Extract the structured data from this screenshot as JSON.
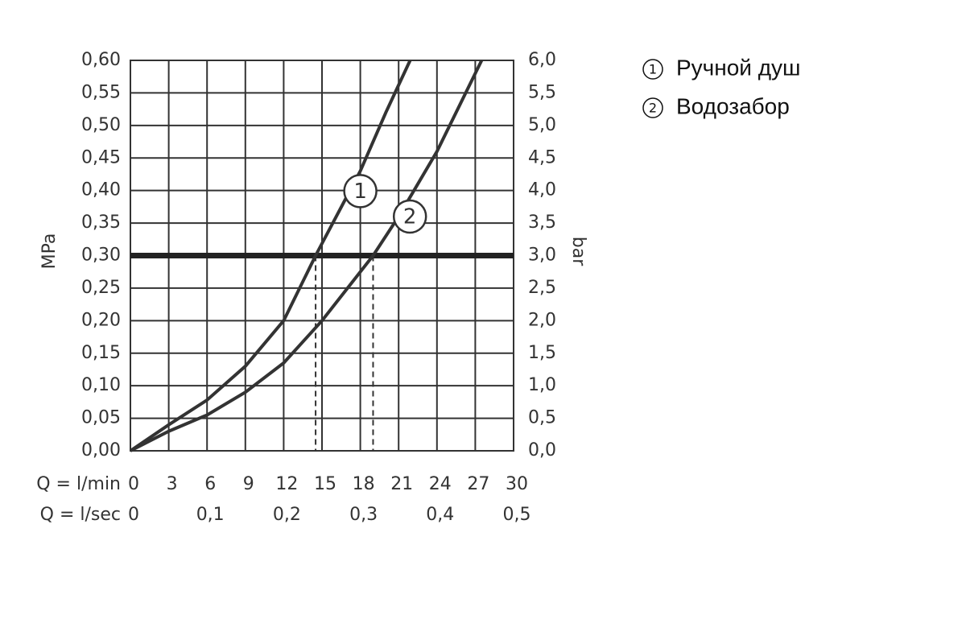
{
  "chart_data": {
    "type": "line",
    "y_label": "MPa",
    "y2_label": "bar",
    "x_label": "Q = l/min",
    "x2_label": "Q = l/sec",
    "xlim": [
      0,
      30
    ],
    "xticks": [
      0,
      3,
      6,
      9,
      12,
      15,
      18,
      21,
      24,
      27,
      30
    ],
    "x2lim": [
      0,
      0.5
    ],
    "x2ticks": [
      0,
      {
        "value": 0.1,
        "label": "0,1"
      },
      {
        "value": 0.2,
        "label": "0,2"
      },
      {
        "value": 0.3,
        "label": "0,3"
      },
      {
        "value": 0.4,
        "label": "0,4"
      },
      {
        "value": 0.5,
        "label": "0,5"
      }
    ],
    "ylim": [
      0,
      0.6
    ],
    "yticks": [
      {
        "value": 0,
        "label": "0,00"
      },
      {
        "value": 0.05,
        "label": "0,05"
      },
      {
        "value": 0.1,
        "label": "0,10"
      },
      {
        "value": 0.15,
        "label": "0,15"
      },
      {
        "value": 0.2,
        "label": "0,20"
      },
      {
        "value": 0.25,
        "label": "0,25"
      },
      {
        "value": 0.3,
        "label": "0,30"
      },
      {
        "value": 0.35,
        "label": "0,35"
      },
      {
        "value": 0.4,
        "label": "0,40"
      },
      {
        "value": 0.45,
        "label": "0,45"
      },
      {
        "value": 0.5,
        "label": "0,50"
      },
      {
        "value": 0.55,
        "label": "0,55"
      },
      {
        "value": 0.6,
        "label": "0,60"
      }
    ],
    "y2lim": [
      0,
      6
    ],
    "y2ticks": [
      {
        "value": 0,
        "label": "0,0"
      },
      {
        "value": 0.5,
        "label": "0,5"
      },
      {
        "value": 1,
        "label": "1,0"
      },
      {
        "value": 1.5,
        "label": "1,5"
      },
      {
        "value": 2,
        "label": "2,0"
      },
      {
        "value": 2.5,
        "label": "2,5"
      },
      {
        "value": 3,
        "label": "3,0"
      },
      {
        "value": 3.5,
        "label": "3,5"
      },
      {
        "value": 4,
        "label": "4,0"
      },
      {
        "value": 4.5,
        "label": "4,5"
      },
      {
        "value": 5,
        "label": "5,0"
      },
      {
        "value": 5.5,
        "label": "5,5"
      },
      {
        "value": 6,
        "label": "6,0"
      }
    ],
    "grid": true,
    "reference_y": 0.3,
    "reference_x": [
      14.5,
      19
    ],
    "series": [
      {
        "name": "Ручной душ",
        "label": "1",
        "color": "#333333",
        "x": [
          0,
          3,
          6,
          9,
          12,
          14.5,
          18,
          20,
          21.9
        ],
        "values": [
          0,
          0.04,
          0.078,
          0.13,
          0.2,
          0.3,
          0.43,
          0.52,
          0.6
        ]
      },
      {
        "name": "Водозабор",
        "label": "2",
        "color": "#333333",
        "x": [
          0,
          3,
          6,
          9,
          12,
          15,
          19,
          21,
          24,
          27.5
        ],
        "values": [
          0,
          0.03,
          0.055,
          0.09,
          0.135,
          0.2,
          0.3,
          0.36,
          0.46,
          0.6
        ]
      }
    ]
  }
}
